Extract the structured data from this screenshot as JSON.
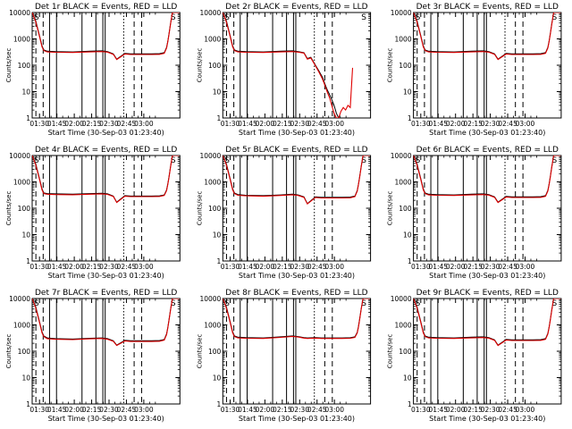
{
  "figure": {
    "ylabel": "Counts/sec",
    "xlabel": "Start Time (30-Sep-03 01:23:40)",
    "colors": {
      "events": "#000000",
      "lld": "#e00000",
      "frame": "#000000",
      "background": "#ffffff"
    }
  },
  "chart_data": [
    {
      "type": "line",
      "title": "Det 1r BLACK = Events, RED = LLD",
      "xlabel": "Start Time (30-Sep-03 01:23:40)",
      "ylabel": "Counts/sec",
      "yscale": "log",
      "ylim": [
        1,
        10000
      ],
      "xticks": [
        "01:30",
        "01:45",
        "02:00",
        "02:15",
        "02:30",
        "02:45",
        "03:00"
      ],
      "yticks": [
        "1",
        "10",
        "100",
        "1000",
        "10000"
      ],
      "markers": [
        "S",
        "S"
      ],
      "grid": false,
      "x": [
        0,
        3,
        6,
        8.5,
        10,
        13,
        20,
        35,
        50,
        60,
        65,
        70,
        73,
        80,
        85,
        95,
        103,
        110,
        114,
        116,
        117,
        118,
        119.5,
        121,
        123,
        125,
        126,
        127
      ],
      "series": [
        {
          "name": "BLACK = Events",
          "values": [
            10000,
            5000,
            1500,
            550,
            380,
            340,
            330,
            320,
            340,
            350,
            330,
            270,
            170,
            280,
            270,
            270,
            270,
            275,
            300,
            480,
            800,
            1500,
            4000,
            10000,
            10000,
            10000,
            10000,
            10000
          ]
        },
        {
          "name": "RED = LLD",
          "values": [
            10000,
            4500,
            1400,
            500,
            360,
            320,
            310,
            305,
            320,
            330,
            315,
            260,
            165,
            265,
            255,
            255,
            255,
            260,
            285,
            450,
            760,
            1400,
            3800,
            10000,
            10000,
            10000,
            10000,
            10000
          ]
        }
      ]
    },
    {
      "type": "line",
      "title": "Det 2r BLACK = Events, RED = LLD",
      "xlabel": "Start Time (30-Sep-03 01:23:40)",
      "ylabel": "Counts/sec",
      "yscale": "log",
      "ylim": [
        1,
        10000
      ],
      "xticks": [
        "01:30",
        "01:45",
        "02:00",
        "02:15",
        "02:30",
        "02:45",
        "03:00"
      ],
      "yticks": [
        "1",
        "10",
        "100",
        "1000",
        "10000"
      ],
      "markers": [
        "S",
        "S"
      ],
      "grid": false,
      "x": [
        0,
        3,
        6,
        8.5,
        10,
        13,
        20,
        35,
        50,
        60,
        65,
        70,
        73,
        76,
        80,
        83,
        86,
        88,
        90,
        92,
        94,
        96,
        98,
        100,
        102,
        104,
        106,
        108,
        110,
        112
      ],
      "series": [
        {
          "name": "BLACK = Events",
          "values": [
            10000,
            5000,
            1500,
            550,
            380,
            340,
            330,
            320,
            340,
            350,
            330,
            300,
            180,
            200,
            100,
            60,
            35,
            20,
            12,
            8,
            5,
            3,
            1.5,
            1,
            1,
            1,
            1,
            1,
            1,
            1
          ]
        },
        {
          "name": "RED = LLD",
          "values": [
            10000,
            4500,
            1400,
            500,
            360,
            320,
            310,
            305,
            320,
            330,
            315,
            290,
            170,
            190,
            95,
            55,
            30,
            18,
            10,
            6,
            3,
            1.5,
            1,
            1,
            1.8,
            2.5,
            2,
            3,
            2.5,
            80
          ]
        }
      ]
    },
    {
      "type": "line",
      "title": "Det 3r BLACK = Events, RED = LLD",
      "xlabel": "Start Time (30-Sep-03 01:23:40)",
      "ylabel": "Counts/sec",
      "yscale": "log",
      "ylim": [
        1,
        10000
      ],
      "xticks": [
        "01:30",
        "01:45",
        "02:00",
        "02:15",
        "02:30",
        "02:45",
        "03:00"
      ],
      "yticks": [
        "1",
        "10",
        "100",
        "1000",
        "10000"
      ],
      "markers": [
        "S",
        "S"
      ],
      "grid": false,
      "x": [
        0,
        3,
        6,
        8.5,
        10,
        13,
        20,
        35,
        50,
        60,
        65,
        70,
        73,
        80,
        85,
        95,
        103,
        110,
        114,
        116,
        117,
        118,
        119.5,
        121,
        123,
        125,
        126,
        127
      ],
      "series": [
        {
          "name": "BLACK = Events",
          "values": [
            10000,
            5000,
            1500,
            550,
            380,
            340,
            330,
            320,
            340,
            350,
            330,
            270,
            170,
            280,
            270,
            270,
            270,
            275,
            300,
            480,
            800,
            1500,
            4000,
            10000,
            10000,
            10000,
            10000,
            10000
          ]
        },
        {
          "name": "RED = LLD",
          "values": [
            10000,
            4500,
            1400,
            500,
            360,
            320,
            310,
            305,
            320,
            330,
            315,
            260,
            165,
            265,
            255,
            255,
            255,
            260,
            285,
            450,
            760,
            1400,
            3800,
            10000,
            10000,
            10000,
            10000,
            10000
          ]
        }
      ]
    },
    {
      "type": "line",
      "title": "Det 4r BLACK = Events, RED = LLD",
      "xlabel": "Start Time (30-Sep-03 01:23:40)",
      "ylabel": "Counts/sec",
      "yscale": "log",
      "ylim": [
        1,
        10000
      ],
      "xticks": [
        "01:30",
        "01:45",
        "02:00",
        "02:15",
        "02:30",
        "02:45",
        "03:00"
      ],
      "yticks": [
        "1",
        "10",
        "100",
        "1000",
        "10000"
      ],
      "markers": [
        "S",
        "S"
      ],
      "grid": false,
      "x": [
        0,
        3,
        6,
        8.5,
        10,
        13,
        20,
        35,
        50,
        60,
        65,
        70,
        73,
        80,
        85,
        95,
        103,
        110,
        114,
        116,
        117,
        118,
        119.5,
        121,
        123,
        125,
        126,
        127
      ],
      "series": [
        {
          "name": "BLACK = Events",
          "values": [
            10000,
            5000,
            1500,
            550,
            380,
            360,
            350,
            340,
            360,
            370,
            350,
            290,
            170,
            300,
            290,
            290,
            290,
            295,
            320,
            500,
            820,
            1500,
            4000,
            10000,
            10000,
            10000,
            10000,
            10000
          ]
        },
        {
          "name": "RED = LLD",
          "values": [
            10000,
            4500,
            1400,
            500,
            360,
            340,
            330,
            325,
            340,
            350,
            335,
            280,
            165,
            285,
            275,
            275,
            275,
            280,
            305,
            470,
            780,
            1400,
            3800,
            10000,
            10000,
            10000,
            10000,
            10000
          ]
        }
      ]
    },
    {
      "type": "line",
      "title": "Det 5r BLACK = Events, RED = LLD",
      "xlabel": "Start Time (30-Sep-03 01:23:40)",
      "ylabel": "Counts/sec",
      "yscale": "log",
      "ylim": [
        1,
        10000
      ],
      "xticks": [
        "01:30",
        "01:45",
        "02:00",
        "02:15",
        "02:30",
        "02:45",
        "03:00"
      ],
      "yticks": [
        "1",
        "10",
        "100",
        "1000",
        "10000"
      ],
      "markers": [
        "S",
        "S"
      ],
      "grid": false,
      "x": [
        0,
        3,
        6,
        8.5,
        10,
        13,
        20,
        35,
        50,
        60,
        65,
        70,
        73,
        80,
        85,
        95,
        103,
        110,
        114,
        116,
        117,
        118,
        119.5,
        121,
        123,
        125,
        126,
        127
      ],
      "series": [
        {
          "name": "BLACK = Events",
          "values": [
            10000,
            5000,
            1500,
            550,
            380,
            330,
            310,
            300,
            320,
            340,
            320,
            270,
            150,
            270,
            260,
            260,
            260,
            265,
            290,
            470,
            800,
            1500,
            4000,
            10000,
            10000,
            10000,
            10000,
            10000
          ]
        },
        {
          "name": "RED = LLD",
          "values": [
            10000,
            4500,
            1400,
            500,
            360,
            310,
            295,
            285,
            305,
            325,
            305,
            260,
            145,
            255,
            245,
            245,
            245,
            250,
            275,
            440,
            760,
            1400,
            3800,
            10000,
            10000,
            10000,
            10000,
            10000
          ]
        }
      ]
    },
    {
      "type": "line",
      "title": "Det 6r BLACK = Events, RED = LLD",
      "xlabel": "Start Time (30-Sep-03 01:23:40)",
      "ylabel": "Counts/sec",
      "yscale": "log",
      "ylim": [
        1,
        10000
      ],
      "xticks": [
        "01:30",
        "01:45",
        "02:00",
        "02:15",
        "02:30",
        "02:45",
        "03:00"
      ],
      "yticks": [
        "1",
        "10",
        "100",
        "1000",
        "10000"
      ],
      "markers": [
        "S",
        "S"
      ],
      "grid": false,
      "x": [
        0,
        3,
        6,
        8.5,
        10,
        13,
        20,
        35,
        50,
        60,
        65,
        70,
        73,
        80,
        85,
        95,
        103,
        110,
        114,
        116,
        117,
        118,
        119.5,
        121,
        123,
        125,
        126,
        127
      ],
      "series": [
        {
          "name": "BLACK = Events",
          "values": [
            10000,
            5000,
            1500,
            550,
            380,
            340,
            330,
            320,
            340,
            350,
            330,
            270,
            170,
            280,
            270,
            270,
            270,
            275,
            300,
            480,
            800,
            1500,
            4000,
            10000,
            10000,
            10000,
            10000,
            10000
          ]
        },
        {
          "name": "RED = LLD",
          "values": [
            10000,
            4500,
            1400,
            500,
            360,
            320,
            310,
            305,
            320,
            330,
            315,
            260,
            165,
            265,
            255,
            255,
            255,
            260,
            285,
            450,
            760,
            1400,
            3800,
            10000,
            10000,
            10000,
            10000,
            10000
          ]
        }
      ]
    },
    {
      "type": "line",
      "title": "Det 7r BLACK = Events, RED = LLD",
      "xlabel": "Start Time (30-Sep-03 01:23:40)",
      "ylabel": "Counts/sec",
      "yscale": "log",
      "ylim": [
        1,
        10000
      ],
      "xticks": [
        "01:30",
        "01:45",
        "02:00",
        "02:15",
        "02:30",
        "02:45",
        "03:00"
      ],
      "yticks": [
        "1",
        "10",
        "100",
        "1000",
        "10000"
      ],
      "markers": [
        "S",
        "S"
      ],
      "grid": false,
      "x": [
        0,
        3,
        6,
        8.5,
        10,
        13,
        20,
        35,
        50,
        60,
        65,
        70,
        73,
        80,
        85,
        95,
        103,
        110,
        114,
        116,
        117,
        118,
        119.5,
        121,
        123,
        125,
        126,
        127
      ],
      "series": [
        {
          "name": "BLACK = Events",
          "values": [
            10000,
            5000,
            1500,
            550,
            380,
            320,
            300,
            290,
            310,
            320,
            300,
            250,
            170,
            260,
            250,
            250,
            250,
            255,
            280,
            460,
            780,
            1500,
            4000,
            10000,
            10000,
            10000,
            10000,
            10000
          ]
        },
        {
          "name": "RED = LLD",
          "values": [
            10000,
            4500,
            1400,
            500,
            360,
            300,
            285,
            275,
            295,
            305,
            285,
            240,
            165,
            245,
            235,
            235,
            235,
            240,
            265,
            430,
            740,
            1400,
            3800,
            10000,
            10000,
            10000,
            10000,
            10000
          ]
        }
      ]
    },
    {
      "type": "line",
      "title": "Det 8r BLACK = Events, RED = LLD",
      "xlabel": "Start Time (30-Sep-03 01:23:40)",
      "ylabel": "Counts/sec",
      "yscale": "log",
      "ylim": [
        1,
        10000
      ],
      "xticks": [
        "01:30",
        "01:45",
        "02:00",
        "02:15",
        "02:30",
        "02:45",
        "03:00"
      ],
      "yticks": [
        "1",
        "10",
        "100",
        "1000",
        "10000"
      ],
      "markers": [
        "S",
        "S"
      ],
      "grid": false,
      "x": [
        0,
        3,
        6,
        8.5,
        10,
        13,
        20,
        35,
        50,
        60,
        65,
        70,
        73,
        80,
        85,
        95,
        103,
        110,
        114,
        116,
        117,
        118,
        119.5,
        121,
        123,
        125,
        126,
        127
      ],
      "series": [
        {
          "name": "BLACK = Events",
          "values": [
            10000,
            5000,
            1500,
            550,
            380,
            340,
            330,
            320,
            350,
            380,
            360,
            330,
            320,
            330,
            320,
            320,
            320,
            325,
            350,
            520,
            850,
            1600,
            4200,
            10000,
            10000,
            10000,
            10000,
            10000
          ]
        },
        {
          "name": "RED = LLD",
          "values": [
            10000,
            4500,
            1400,
            500,
            360,
            320,
            310,
            305,
            335,
            365,
            345,
            315,
            305,
            315,
            305,
            305,
            305,
            310,
            335,
            490,
            800,
            1500,
            4000,
            10000,
            10000,
            10000,
            10000,
            10000
          ]
        }
      ]
    },
    {
      "type": "line",
      "title": "Det 9r BLACK = Events, RED = LLD",
      "xlabel": "Start Time (30-Sep-03 01:23:40)",
      "ylabel": "Counts/sec",
      "yscale": "log",
      "ylim": [
        1,
        10000
      ],
      "xticks": [
        "01:30",
        "01:45",
        "02:00",
        "02:15",
        "02:30",
        "02:45",
        "03:00"
      ],
      "yticks": [
        "1",
        "10",
        "100",
        "1000",
        "10000"
      ],
      "markers": [
        "S",
        "S"
      ],
      "grid": false,
      "x": [
        0,
        3,
        6,
        8.5,
        10,
        13,
        20,
        35,
        50,
        60,
        65,
        70,
        73,
        80,
        85,
        95,
        103,
        110,
        114,
        116,
        117,
        118,
        119.5,
        121,
        123,
        125,
        126,
        127
      ],
      "series": [
        {
          "name": "BLACK = Events",
          "values": [
            10000,
            5000,
            1500,
            550,
            380,
            340,
            330,
            320,
            340,
            350,
            330,
            270,
            170,
            280,
            270,
            270,
            270,
            275,
            300,
            480,
            800,
            1500,
            4000,
            10000,
            10000,
            10000,
            10000,
            10000
          ]
        },
        {
          "name": "RED = LLD",
          "values": [
            10000,
            4500,
            1400,
            500,
            360,
            320,
            310,
            305,
            320,
            330,
            315,
            260,
            165,
            265,
            255,
            255,
            255,
            260,
            285,
            450,
            760,
            1400,
            3800,
            10000,
            10000,
            10000,
            10000,
            10000
          ]
        }
      ]
    }
  ]
}
